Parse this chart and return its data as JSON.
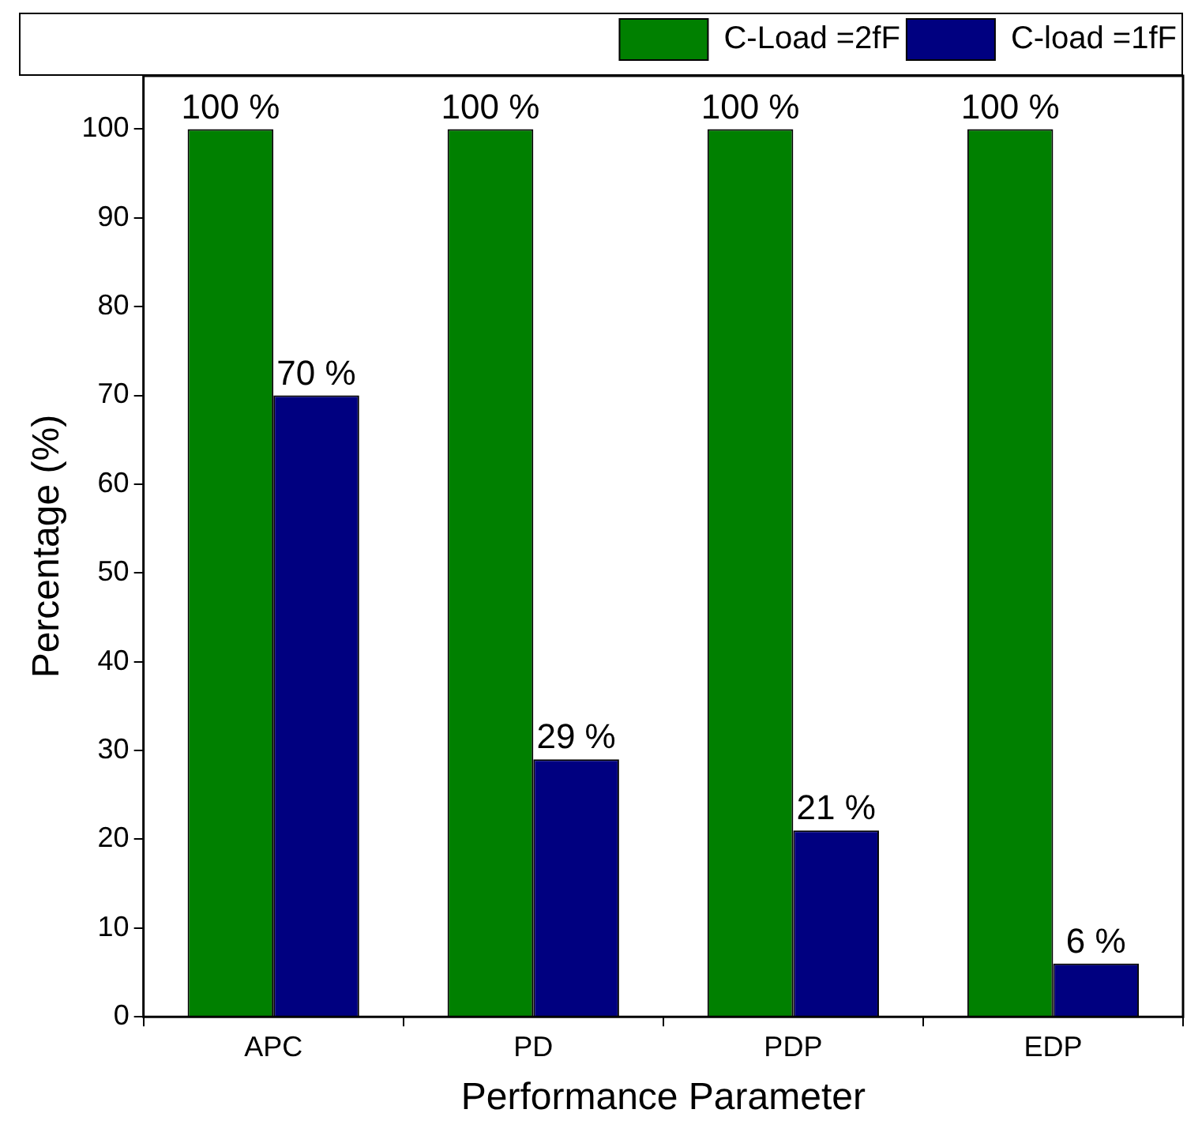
{
  "chart_data": {
    "type": "bar",
    "xlabel": "Performance Parameter",
    "ylabel": "Percentage (%)",
    "categories": [
      "APC",
      "PD",
      "PDP",
      "EDP"
    ],
    "series": [
      {
        "name": "C-Load =2fF",
        "color": "#008000",
        "values": [
          100,
          100,
          100,
          100
        ],
        "value_labels": [
          "100 %",
          "100 %",
          "100 %",
          "100 %"
        ]
      },
      {
        "name": "C-load =1fF",
        "color": "#000080",
        "values": [
          70,
          29,
          21,
          6
        ],
        "value_labels": [
          "70 %",
          "29 %",
          "21 %",
          "6 %"
        ]
      }
    ],
    "ylim": [
      0,
      106
    ],
    "yticks": [
      0,
      10,
      20,
      30,
      40,
      50,
      60,
      70,
      80,
      90,
      100
    ],
    "grid": false,
    "legend": "top right"
  }
}
